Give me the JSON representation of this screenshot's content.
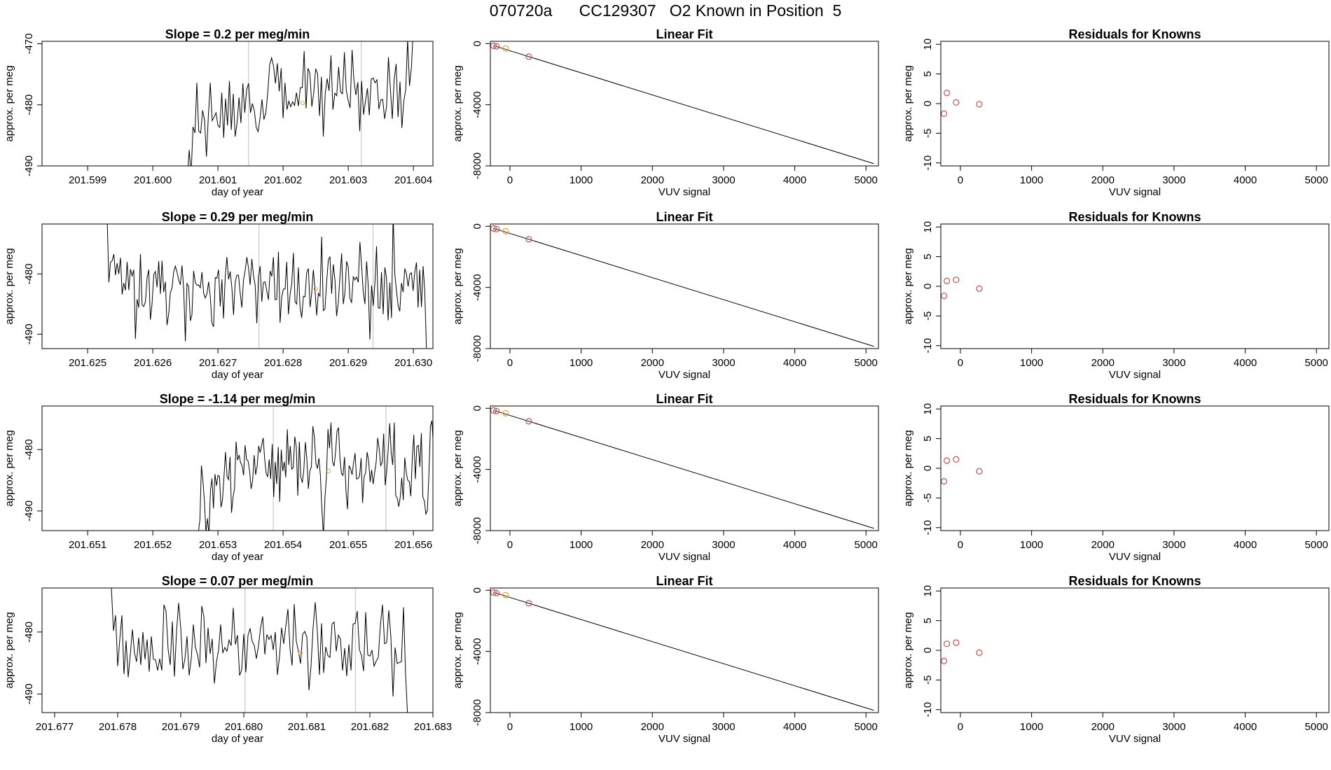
{
  "title": "070720a      CC129307   O2 Known in Position  5",
  "chart_data": [
    {
      "type": "line",
      "title": "Slope =  0.2  per meg/min",
      "xlabel": "day of year",
      "ylabel": "approx. per meg",
      "xlim": [
        201.5983,
        201.6043
      ],
      "ylim": [
        -490,
        -469.6
      ],
      "xticks": [
        "201.599",
        "201.600",
        "201.601",
        "201.602",
        "201.603",
        "201.604"
      ],
      "yticks": [
        "-470",
        "-480",
        "-490"
      ],
      "vlines": [
        201.60147,
        201.6032
      ],
      "marker": {
        "x": 201.6023,
        "y": -479.7,
        "color": "#e6a23c"
      },
      "x_start": 201.6005,
      "x_end": 201.604,
      "series": [
        {
          "name": "signal",
          "values": [
            -494.1,
            -492.2,
            -487.4,
            -491.5,
            -483.6,
            -484.6,
            -476.4,
            -484.3,
            -484.6,
            -480.9,
            -482.5,
            -488.5,
            -481.9,
            -476.4,
            -482.6,
            -482.0,
            -481.3,
            -483.4,
            -483.7,
            -478.0,
            -485.4,
            -479.0,
            -483.4,
            -476.1,
            -484.1,
            -478.2,
            -485.2,
            -482.9,
            -478.8,
            -483.0,
            -476.5,
            -481.3,
            -477.5,
            -476.5,
            -481.3,
            -479.8,
            -481.0,
            -483.7,
            -484.4,
            -482.1,
            -479.1,
            -482.4,
            -481.3,
            -478.0,
            -473.4,
            -472.3,
            -473.6,
            -476.5,
            -473.2,
            -477.8,
            -474.0,
            -482.2,
            -476.4,
            -480.8,
            -479.4,
            -480.3,
            -479.5,
            -480.1,
            -478.0,
            -480.2,
            -477.2,
            -477.2,
            -471.2,
            -480.6,
            -474.0,
            -474.9,
            -480.3,
            -478.0,
            -474.1,
            -474.9,
            -481.8,
            -475.4,
            -485.2,
            -478.1,
            -475.7,
            -477.7,
            -471.9,
            -480.8,
            -478.1,
            -478.5,
            -473.8,
            -477.9,
            -478.2,
            -471.4,
            -477.7,
            -479.3,
            -480.5,
            -471.0,
            -476.1,
            -478.4,
            -476.3,
            -484.3,
            -476.1,
            -481.6,
            -479.4,
            -477.3,
            -481.7,
            -475.8,
            -475.6,
            -476.4,
            -475.9,
            -480.7,
            -479.2,
            -479.1,
            -482.3,
            -480.3,
            -472.2,
            -477.4,
            -482.3,
            -475.8,
            -473.3,
            -482.0,
            -476.2,
            -483.8,
            -479.4,
            -477.5,
            -469.3,
            -476.9,
            -473.8,
            -467.0
          ]
        }
      ]
    },
    {
      "type": "line",
      "title": "Slope =  0.29  per meg/min",
      "xlabel": "day of year",
      "ylabel": "approx. per meg",
      "xlim": [
        201.6243,
        201.6303
      ],
      "ylim": [
        -492.4,
        -471.7
      ],
      "xticks": [
        "201.625",
        "201.626",
        "201.627",
        "201.628",
        "201.629",
        "201.630"
      ],
      "yticks": [
        "-480",
        "-490"
      ],
      "vlines": [
        201.62763,
        201.62938
      ],
      "marker": {
        "x": 201.6285,
        "y": -482.5,
        "color": "#e6a23c"
      },
      "x_start": 201.6253,
      "x_end": 201.6302,
      "series": [
        {
          "name": "signal",
          "values": [
            -470.8,
            -481.4,
            -478.1,
            -477.8,
            -476.7,
            -480.2,
            -478.2,
            -480.0,
            -477.3,
            -483.4,
            -481.5,
            -482.7,
            -478.0,
            -482.7,
            -479.2,
            -480.3,
            -479.3,
            -490.8,
            -484.2,
            -485.6,
            -476.7,
            -485.1,
            -485.4,
            -484.6,
            -480.6,
            -479.3,
            -487.6,
            -484.9,
            -480.1,
            -479.6,
            -482.2,
            -477.9,
            -483.3,
            -477.8,
            -483.0,
            -481.3,
            -488.5,
            -486.7,
            -483.1,
            -482.3,
            -479.7,
            -478.7,
            -479.7,
            -481.0,
            -481.8,
            -478.6,
            -482.4,
            -491.2,
            -481.6,
            -482.1,
            -487.8,
            -486.8,
            -479.5,
            -481.4,
            -481.9,
            -481.8,
            -482.3,
            -479.7,
            -483.2,
            -484.0,
            -483.3,
            -481.3,
            -483.8,
            -488.1,
            -488.8,
            -480.6,
            -480.7,
            -479.3,
            -485.4,
            -480.9,
            -487.4,
            -480.5,
            -477.2,
            -480.9,
            -479.6,
            -482.3,
            -486.8,
            -481.3,
            -480.2,
            -480.2,
            -483.2,
            -485.6,
            -481.0,
            -479.4,
            -477.2,
            -479.0,
            -481.8,
            -477.5,
            -480.3,
            -481.8,
            -488.2,
            -480.5,
            -478.7,
            -484.6,
            -481.4,
            -481.3,
            -482.8,
            -484.3,
            -479.5,
            -480.4,
            -477.2,
            -484.3,
            -484.2,
            -476.3,
            -488.1,
            -483.8,
            -482.5,
            -482.5,
            -478.0,
            -486.7,
            -483.4,
            -481.6,
            -476.5,
            -484.6,
            -485.0,
            -478.9,
            -485.5,
            -487.3,
            -483.7,
            -483.8,
            -479.8,
            -479.1,
            -485.5,
            -483.2,
            -479.3,
            -482.7,
            -486.9,
            -483.2,
            -483.7,
            -473.8,
            -486.1,
            -485.8,
            -481.3,
            -477.7,
            -477.1,
            -483.3,
            -478.4,
            -481.0,
            -487.0,
            -484.8,
            -480.4,
            -476.6,
            -485.0,
            -483.1,
            -477.9,
            -478.8,
            -484.0,
            -484.8,
            -480.4,
            -481.0,
            -480.5,
            -481.4,
            -474.7,
            -478.5,
            -482.9,
            -485.0,
            -477.9,
            -481.8,
            -490.9,
            -481.9,
            -485.3,
            -481.7,
            -475.4,
            -485.6,
            -485.7,
            -479.7,
            -486.7,
            -478.9,
            -480.6,
            -487.7,
            -481.4,
            -487.3,
            -470.0,
            -480.1,
            -482.8,
            -485.3,
            -486.2,
            -481.5,
            -483.0,
            -479.1,
            -480.0,
            -482.1,
            -480.0,
            -479.8,
            -482.8,
            -479.7,
            -478.1,
            -485.6,
            -479.3,
            -485.5,
            -478.7,
            -482.7,
            -492.3
          ]
        }
      ]
    },
    {
      "type": "line",
      "title": "Slope =  -1.14  per meg/min",
      "xlabel": "day of year",
      "ylabel": "approx. per meg",
      "xlim": [
        201.6503,
        201.6563
      ],
      "ylim": [
        -493.2,
        -472.9
      ],
      "xticks": [
        "201.651",
        "201.652",
        "201.653",
        "201.654",
        "201.655",
        "201.656"
      ],
      "yticks": [
        "-480",
        "-490"
      ],
      "vlines": [
        201.65385,
        201.65558
      ],
      "marker": {
        "x": 201.6547,
        "y": -483.5,
        "color": "#e6a23c"
      },
      "x_start": 201.6527,
      "x_end": 201.6564,
      "series": [
        {
          "name": "signal",
          "values": [
            -493.5,
            -491.4,
            -482.6,
            -485.1,
            -488.4,
            -493.5,
            -491.2,
            -493.9,
            -486.7,
            -484.7,
            -489.6,
            -484.0,
            -485.9,
            -484.2,
            -484.4,
            -489.4,
            -488.2,
            -484.3,
            -480.4,
            -484.4,
            -484.9,
            -481.2,
            -490.3,
            -487.7,
            -486.3,
            -478.7,
            -481.7,
            -480.9,
            -482.1,
            -482.6,
            -484.2,
            -479.3,
            -481.6,
            -481.9,
            -483.5,
            -486.4,
            -485.1,
            -480.9,
            -484.1,
            -482.7,
            -479.4,
            -480.5,
            -479.3,
            -478.1,
            -481.5,
            -483.9,
            -484.4,
            -481.6,
            -484.8,
            -479.1,
            -487.7,
            -482.0,
            -485.6,
            -479.6,
            -488.5,
            -480.0,
            -483.5,
            -482.0,
            -484.5,
            -476.7,
            -482.5,
            -479.4,
            -483.2,
            -482.9,
            -477.9,
            -479.6,
            -487.5,
            -478.7,
            -484.5,
            -485.4,
            -483.3,
            -478.8,
            -481.5,
            -486.4,
            -483.5,
            -482.8,
            -476.2,
            -477.9,
            -482.2,
            -483.1,
            -481.4,
            -484.3,
            -490.0,
            -494.0,
            -487.8,
            -484.4,
            -476.7,
            -479.8,
            -475.6,
            -481.9,
            -482.7,
            -480.6,
            -477.0,
            -476.4,
            -481.7,
            -483.9,
            -484.2,
            -481.2,
            -486.9,
            -489.7,
            -482.6,
            -483.1,
            -484.1,
            -482.2,
            -480.6,
            -484.8,
            -484.7,
            -484.3,
            -481.4,
            -488.7,
            -484.4,
            -483.8,
            -480.4,
            -481.8,
            -485.3,
            -483.3,
            -485.6,
            -483.8,
            -482.0,
            -478.1,
            -479.8,
            -482.6,
            -482.1,
            -477.4,
            -485.8,
            -483.5,
            -479.9,
            -475.7,
            -480.6,
            -482.5,
            -475.6,
            -487.5,
            -487.9,
            -489.3,
            -487.7,
            -484.6,
            -488.2,
            -481.3,
            -483.8,
            -485.0,
            -485.2,
            -487.6,
            -481.3,
            -477.6,
            -484.8,
            -479.5,
            -479.3,
            -482.8,
            -477.3,
            -487.7,
            -488.4,
            -490.5,
            -489.9,
            -484.3,
            -476.2,
            -475.3,
            -479.5,
            -482.3,
            -479.1,
            -488.5,
            -472.9
          ]
        }
      ]
    },
    {
      "type": "line",
      "title": "Slope =  0.07  per meg/min",
      "xlabel": "day of year",
      "ylabel": "approx. per meg",
      "xlim": [
        201.6768,
        201.683
      ],
      "ylim": [
        -493.0,
        -472.9
      ],
      "xticks": [
        "201.677",
        "201.678",
        "201.679",
        "201.680",
        "201.681",
        "201.682",
        "201.683"
      ],
      "yticks": [
        "-480",
        "-490"
      ],
      "vlines": [
        201.68002,
        201.68177
      ],
      "marker": {
        "x": 201.6809,
        "y": -483.4,
        "color": "#e6a23c"
      },
      "x_start": 201.6779,
      "x_end": 201.6826,
      "series": [
        {
          "name": "signal",
          "values": [
            -472.9,
            -479.8,
            -477.3,
            -485.5,
            -481.2,
            -477.3,
            -486.8,
            -481.4,
            -487.3,
            -483.7,
            -479.6,
            -483.4,
            -484.8,
            -480.9,
            -485.3,
            -480.0,
            -484.4,
            -481.2,
            -486.4,
            -480.7,
            -484.4,
            -484.5,
            -486.2,
            -484.3,
            -486.2,
            -475.6,
            -476.6,
            -482.8,
            -485.3,
            -478.3,
            -487.2,
            -479.9,
            -475.3,
            -479.4,
            -486.0,
            -484.3,
            -480.7,
            -487.0,
            -484.3,
            -478.8,
            -482.5,
            -483.7,
            -485.7,
            -475.8,
            -477.5,
            -485.0,
            -479.3,
            -483.5,
            -481.1,
            -488.3,
            -484.8,
            -482.9,
            -478.8,
            -483.4,
            -482.5,
            -483.1,
            -481.3,
            -482.2,
            -476.1,
            -482.0,
            -480.5,
            -487.0,
            -486.1,
            -480.3,
            -486.5,
            -480.5,
            -479.4,
            -481.5,
            -482.2,
            -484.3,
            -482.2,
            -479.3,
            -477.5,
            -483.6,
            -480.4,
            -481.2,
            -480.6,
            -482.9,
            -480.0,
            -486.9,
            -484.0,
            -479.3,
            -481.9,
            -479.0,
            -476.3,
            -482.7,
            -485.4,
            -475.5,
            -481.5,
            -483.1,
            -485.1,
            -480.4,
            -479.9,
            -480.8,
            -489.4,
            -485.4,
            -479.2,
            -475.2,
            -479.9,
            -486.9,
            -478.6,
            -486.6,
            -482.4,
            -483.8,
            -484.1,
            -478.7,
            -478.4,
            -483.1,
            -480.5,
            -481.1,
            -486.2,
            -482.6,
            -487.1,
            -482.0,
            -486.2,
            -478.7,
            -478.6,
            -476.6,
            -482.8,
            -483.8,
            -486.3,
            -476.8,
            -483.7,
            -483.9,
            -482.9,
            -485.5,
            -484.7,
            -484.1,
            -478.9,
            -475.6,
            -481.9,
            -481.7,
            -476.5,
            -480.8,
            -490.4,
            -482.5,
            -485.1,
            -484.9,
            -484.8,
            -476.0,
            -486.9,
            -493.9
          ]
        }
      ]
    }
  ],
  "linear_fit": {
    "type": "line",
    "title": "Linear Fit",
    "xlabel": "VUV signal",
    "ylabel": "approx. per meg",
    "xlim": [
      -275,
      5175
    ],
    "ylim": [
      -8000,
      150
    ],
    "xticks": [
      "0",
      "1000",
      "2000",
      "3000",
      "4000",
      "5000"
    ],
    "yticks": [
      "0",
      "-4000",
      "-8000"
    ],
    "line": {
      "x": [
        -220,
        5110
      ],
      "y": [
        -150,
        -7850
      ]
    },
    "points": [
      {
        "x": -230,
        "y": -140,
        "color": "#c0504d"
      },
      {
        "x": -190,
        "y": -180,
        "color": "#c0504d"
      },
      {
        "x": -60,
        "y": -320,
        "color": "#e6a23c"
      },
      {
        "x": 265,
        "y": -850,
        "color": "#c0504d"
      }
    ]
  },
  "residuals": {
    "type": "scatter",
    "title": "Residuals for Knowns",
    "xlabel": "VUV signal",
    "ylabel": "approx. per meg",
    "xlim": [
      -275,
      5175
    ],
    "ylim": [
      -10.5,
      10.5
    ],
    "xticks": [
      "0",
      "1000",
      "2000",
      "3000",
      "4000",
      "5000"
    ],
    "yticks": [
      "10",
      "5",
      "0",
      "-5",
      "-10"
    ],
    "points": [
      [
        {
          "x": -230,
          "y": -1.7
        },
        {
          "x": -190,
          "y": 1.8
        },
        {
          "x": -60,
          "y": 0.2
        },
        {
          "x": 265,
          "y": -0.1
        }
      ],
      [
        {
          "x": -230,
          "y": -1.6
        },
        {
          "x": -190,
          "y": 0.9
        },
        {
          "x": -60,
          "y": 1.1
        },
        {
          "x": 265,
          "y": -0.4
        }
      ],
      [
        {
          "x": -230,
          "y": -2.2
        },
        {
          "x": -190,
          "y": 1.3
        },
        {
          "x": -60,
          "y": 1.5
        },
        {
          "x": 265,
          "y": -0.5
        }
      ],
      [
        {
          "x": -230,
          "y": -1.8
        },
        {
          "x": -190,
          "y": 1.1
        },
        {
          "x": -60,
          "y": 1.3
        },
        {
          "x": 265,
          "y": -0.4
        }
      ]
    ],
    "color": "#c0504d"
  }
}
